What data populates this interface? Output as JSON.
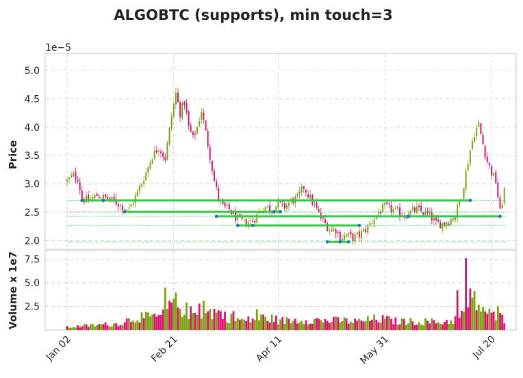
{
  "chart_data": {
    "type": "candlestick",
    "title": "ALGOBTC (supports), min touch=3",
    "price_panel": {
      "ylabel": "Price",
      "scale_label": "1e−5",
      "ylim": [
        1.85,
        5.3
      ],
      "yticks": [
        2.0,
        2.5,
        3.0,
        3.5,
        4.0,
        4.5,
        5.0
      ],
      "ytick_labels": [
        "2.0",
        "2.5",
        "3.0",
        "3.5",
        "4.0",
        "4.5",
        "5.0"
      ],
      "grid": true
    },
    "volume_panel": {
      "ylabel": "Volume x 1e7",
      "ylim": [
        0,
        8.4
      ],
      "yticks": [
        2.5,
        5.0,
        7.5
      ],
      "ytick_labels": [
        "2.5",
        "5.0",
        "7.5"
      ],
      "grid": true
    },
    "x_axis": {
      "num_bars": 206,
      "ticks": [
        {
          "index": 0,
          "label": "Jan 02"
        },
        {
          "index": 50,
          "label": "Feb 21"
        },
        {
          "index": 99,
          "label": "Apr 11"
        },
        {
          "index": 149,
          "label": "May 31"
        },
        {
          "index": 199,
          "label": "Jul 20"
        }
      ]
    },
    "colors": {
      "up": "#7aa40e",
      "down": "#e0106f",
      "support_line": "#2ecc40",
      "touch_point": "#1f77b4"
    },
    "price_anchors": [
      [
        0,
        3.05
      ],
      [
        3,
        3.15
      ],
      [
        5,
        3.1
      ],
      [
        7,
        2.75
      ],
      [
        10,
        2.7
      ],
      [
        14,
        2.8
      ],
      [
        18,
        2.75
      ],
      [
        22,
        2.7
      ],
      [
        26,
        2.6
      ],
      [
        29,
        2.55
      ],
      [
        33,
        2.85
      ],
      [
        37,
        3.2
      ],
      [
        40,
        3.5
      ],
      [
        43,
        3.65
      ],
      [
        46,
        3.45
      ],
      [
        49,
        4.2
      ],
      [
        51,
        4.6
      ],
      [
        53,
        4.25
      ],
      [
        55,
        4.45
      ],
      [
        57,
        4.0
      ],
      [
        59,
        3.8
      ],
      [
        61,
        4.0
      ],
      [
        63,
        4.3
      ],
      [
        65,
        3.9
      ],
      [
        67,
        3.5
      ],
      [
        69,
        3.05
      ],
      [
        71,
        2.75
      ],
      [
        73,
        2.6
      ],
      [
        76,
        2.55
      ],
      [
        78,
        2.45
      ],
      [
        81,
        2.35
      ],
      [
        84,
        2.32
      ],
      [
        87,
        2.35
      ],
      [
        90,
        2.5
      ],
      [
        93,
        2.6
      ],
      [
        96,
        2.55
      ],
      [
        99,
        2.65
      ],
      [
        102,
        2.6
      ],
      [
        105,
        2.7
      ],
      [
        108,
        2.75
      ],
      [
        111,
        2.95
      ],
      [
        114,
        2.75
      ],
      [
        117,
        2.55
      ],
      [
        119,
        2.4
      ],
      [
        121,
        2.3
      ],
      [
        123,
        2.2
      ],
      [
        126,
        2.2
      ],
      [
        128,
        2.05
      ],
      [
        131,
        2.1
      ],
      [
        134,
        2.05
      ],
      [
        137,
        2.1
      ],
      [
        140,
        2.2
      ],
      [
        143,
        2.35
      ],
      [
        146,
        2.5
      ],
      [
        149,
        2.6
      ],
      [
        152,
        2.55
      ],
      [
        155,
        2.5
      ],
      [
        158,
        2.45
      ],
      [
        161,
        2.5
      ],
      [
        164,
        2.55
      ],
      [
        167,
        2.5
      ],
      [
        170,
        2.45
      ],
      [
        173,
        2.3
      ],
      [
        176,
        2.3
      ],
      [
        179,
        2.35
      ],
      [
        182,
        2.45
      ],
      [
        185,
        2.8
      ],
      [
        187,
        3.2
      ],
      [
        189,
        3.6
      ],
      [
        191,
        3.9
      ],
      [
        193,
        4.05
      ],
      [
        195,
        3.7
      ],
      [
        197,
        3.4
      ],
      [
        199,
        3.2
      ],
      [
        201,
        3.05
      ],
      [
        203,
        2.5
      ],
      [
        205,
        2.9
      ]
    ],
    "volume_anchors": [
      [
        0,
        0.3
      ],
      [
        6,
        0.4
      ],
      [
        12,
        0.5
      ],
      [
        18,
        0.6
      ],
      [
        22,
        0.6
      ],
      [
        26,
        0.8
      ],
      [
        30,
        1.2
      ],
      [
        34,
        1.4
      ],
      [
        38,
        1.3
      ],
      [
        42,
        1.4
      ],
      [
        46,
        1.6
      ],
      [
        48,
        2.2
      ],
      [
        50,
        3.0
      ],
      [
        52,
        2.6
      ],
      [
        55,
        2.2
      ],
      [
        58,
        1.8
      ],
      [
        62,
        1.6
      ],
      [
        66,
        1.8
      ],
      [
        70,
        2.0
      ],
      [
        73,
        1.6
      ],
      [
        76,
        1.3
      ],
      [
        80,
        1.1
      ],
      [
        84,
        1.0
      ],
      [
        88,
        1.2
      ],
      [
        92,
        1.3
      ],
      [
        96,
        1.2
      ],
      [
        100,
        1.0
      ],
      [
        105,
        1.0
      ],
      [
        110,
        1.1
      ],
      [
        115,
        1.1
      ],
      [
        120,
        1.0
      ],
      [
        125,
        1.0
      ],
      [
        130,
        1.0
      ],
      [
        135,
        0.9
      ],
      [
        140,
        1.0
      ],
      [
        145,
        1.2
      ],
      [
        150,
        1.1
      ],
      [
        155,
        0.9
      ],
      [
        160,
        0.9
      ],
      [
        165,
        0.9
      ],
      [
        170,
        0.9
      ],
      [
        175,
        0.8
      ],
      [
        180,
        1.0
      ],
      [
        184,
        1.3
      ],
      [
        188,
        2.2
      ],
      [
        191,
        3.2
      ],
      [
        194,
        2.4
      ],
      [
        197,
        1.8
      ],
      [
        200,
        1.5
      ],
      [
        203,
        1.4
      ],
      [
        205,
        1.2
      ]
    ],
    "volume_spikes": [
      [
        46,
        4.5
      ],
      [
        48,
        3.1
      ],
      [
        49,
        2.9
      ],
      [
        62,
        2.8
      ],
      [
        64,
        3.1
      ],
      [
        78,
        2.0
      ],
      [
        89,
        2.2
      ],
      [
        183,
        4.2
      ],
      [
        187,
        7.6
      ],
      [
        189,
        4.4
      ],
      [
        202,
        2.5
      ]
    ],
    "supports": [
      {
        "level": 2.71,
        "x_start": 7,
        "x_end": 189,
        "touches": [
          7,
          17,
          189
        ]
      },
      {
        "level": 2.51,
        "x_start": 27,
        "x_end": 100,
        "touches": [
          27,
          97,
          100
        ]
      },
      {
        "level": 2.43,
        "x_start": 70,
        "x_end": 203,
        "touches": [
          70,
          160,
          203
        ]
      },
      {
        "level": 2.27,
        "x_start": 80,
        "x_end": 137,
        "touches": [
          80,
          87,
          137
        ]
      },
      {
        "level": 1.98,
        "x_start": 122,
        "x_end": 132,
        "touches": [
          122,
          128,
          132
        ]
      }
    ]
  }
}
